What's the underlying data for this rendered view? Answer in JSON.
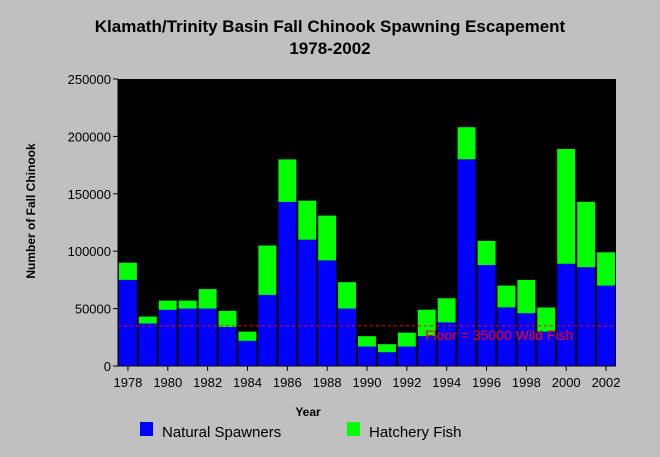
{
  "chart_data": {
    "type": "bar",
    "stacked": true,
    "title": "Klamath/Trinity Basin Fall Chinook Spawning Escapement",
    "subtitle": "1978-2002",
    "xlabel": "Year",
    "ylabel": "Number of Fall Chinook",
    "ylim": [
      0,
      250000
    ],
    "yticks": [
      0,
      50000,
      100000,
      150000,
      200000,
      250000
    ],
    "xtick_labels": [
      "1978",
      "1980",
      "1982",
      "1984",
      "1986",
      "1988",
      "1990",
      "1992",
      "1994",
      "1996",
      "1998",
      "2000",
      "2002"
    ],
    "categories": [
      "1978",
      "1979",
      "1980",
      "1981",
      "1982",
      "1983",
      "1984",
      "1985",
      "1986",
      "1987",
      "1988",
      "1989",
      "1990",
      "1991",
      "1992",
      "1993",
      "1994",
      "1995",
      "1996",
      "1997",
      "1998",
      "1999",
      "2000",
      "2001",
      "2002"
    ],
    "series": [
      {
        "name": "Natural Spawners",
        "color": "#0000ff",
        "values": [
          75000,
          37000,
          49000,
          50000,
          50000,
          34000,
          22000,
          62000,
          143000,
          110000,
          92000,
          50000,
          17000,
          12000,
          17000,
          26000,
          38000,
          180000,
          88000,
          51000,
          46000,
          30000,
          89000,
          86000,
          70000
        ]
      },
      {
        "name": "Hatchery Fish",
        "color": "#00ff00",
        "values": [
          15000,
          6000,
          8000,
          7000,
          17000,
          14000,
          8000,
          43000,
          37000,
          34000,
          39000,
          23000,
          9000,
          7000,
          12000,
          23000,
          21000,
          28000,
          21000,
          19000,
          29000,
          21000,
          100000,
          57000,
          29000
        ]
      }
    ],
    "reference_line": {
      "value": 35000,
      "label": "Floor = 35000 Wild Fish",
      "color": "#ff0000"
    },
    "legend_position": "bottom",
    "grid": false
  }
}
